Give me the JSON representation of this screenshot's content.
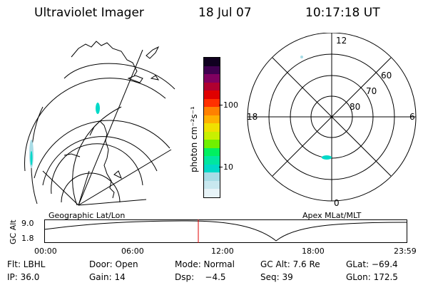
{
  "header": {
    "title": "Ultraviolet Imager",
    "date": "18 Jul 07",
    "time": "10:17:18 UT"
  },
  "colorbar": {
    "unit_label": "photon cm⁻²s⁻¹",
    "ticks": [
      "100",
      "10"
    ],
    "colors": [
      "#e8f4f8",
      "#c8e8ef",
      "#a8dce6",
      "#00d9c8",
      "#00e6a0",
      "#00f060",
      "#70f000",
      "#c8f000",
      "#f0e000",
      "#ffb000",
      "#ff8000",
      "#ff3000",
      "#e00000",
      "#b00030",
      "#800060",
      "#400050",
      "#100020"
    ]
  },
  "left_map": {
    "label": "Geographic Lat/Lon"
  },
  "right_map": {
    "label": "Apex MLat/MLT",
    "mlt_labels": {
      "top": "12",
      "left": "18",
      "right": "6",
      "bottom": "0"
    },
    "lat_labels": [
      "60",
      "70",
      "80"
    ]
  },
  "timeline": {
    "axis_label": "GC Alt",
    "y_max": "9.0",
    "y_min": "1.8",
    "x_ticks": [
      "00:00",
      "06:00",
      "12:00",
      "18:00",
      "23:59"
    ],
    "current_time_color": "#e00000"
  },
  "info": {
    "row1": {
      "flt": "Flt: LBHL",
      "door": "Door: Open",
      "mode": "Mode: Normal",
      "gc_alt": "GC Alt: 7.6 Re",
      "glat": "GLat: −69.4"
    },
    "row2": {
      "ip": "IP: 36.0",
      "gain": "Gain: 14",
      "dsp": "Dsp:    −4.5",
      "seq": "Seq: 39",
      "glon": "GLon: 172.5"
    }
  }
}
